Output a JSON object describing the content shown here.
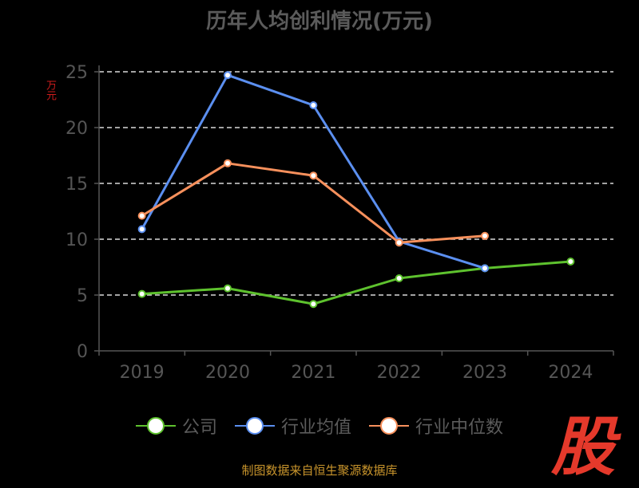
{
  "title": "历年人均创利情况(万元)",
  "y_unit": "万元",
  "source": "制图数据来自恒生聚源数据库",
  "logo_text": "股",
  "legend_items": [
    "公司",
    "行业均值",
    "行业中位数"
  ],
  "colors": {
    "company": "#5ec22e",
    "industry_mean": "#5b8ff0",
    "industry_median": "#f7905c",
    "grid": "#d9d9d9",
    "axis": "#555555"
  },
  "chart_data": {
    "type": "line",
    "categories": [
      "2019",
      "2020",
      "2021",
      "2022",
      "2023",
      "2024"
    ],
    "yticks": [
      "0",
      "5",
      "10",
      "15",
      "20",
      "25"
    ],
    "ylim": [
      0,
      25
    ],
    "grid": true,
    "legend_position": "bottom",
    "series": [
      {
        "name": "公司",
        "values": [
          5.1,
          5.6,
          4.2,
          6.5,
          7.4,
          8.0
        ]
      },
      {
        "name": "行业均值",
        "values": [
          10.9,
          24.7,
          22.0,
          9.8,
          7.4,
          null
        ]
      },
      {
        "name": "行业中位数",
        "values": [
          12.1,
          16.8,
          15.7,
          9.7,
          10.3,
          null
        ]
      }
    ]
  }
}
